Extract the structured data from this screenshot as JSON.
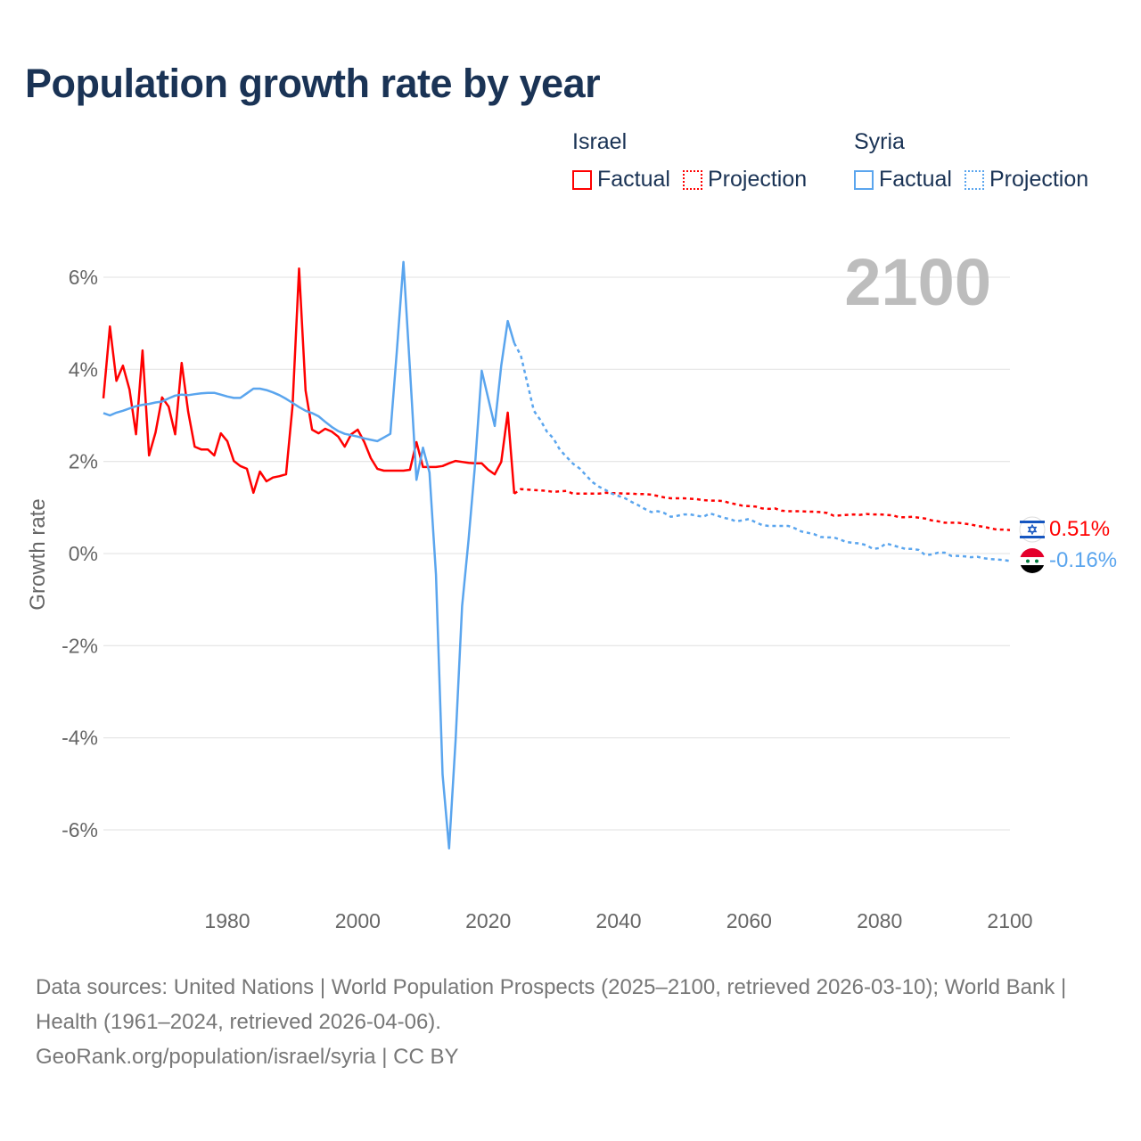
{
  "title": "Population growth rate by year",
  "legend": {
    "groups": [
      {
        "name": "Israel",
        "factual": "Factual",
        "projection": "Projection",
        "color": "#ff0000"
      },
      {
        "name": "Syria",
        "factual": "Factual",
        "projection": "Projection",
        "color": "#5aa5ee"
      }
    ]
  },
  "year_marker": "2100",
  "footer": {
    "sources": "Data sources: United Nations | World Population Prospects (2025–2100, retrieved 2026-03-10); World Bank | Health (1961–2024, retrieved 2026-04-06).",
    "credit": "GeoRank.org/population/israel/syria | CC BY"
  },
  "chart_data": {
    "type": "line",
    "title": "Population growth rate by year",
    "xlabel": "",
    "ylabel": "Growth rate",
    "xlim": [
      1961,
      2100
    ],
    "ylim": [
      -7.5,
      6.5
    ],
    "x_ticks": [
      1980,
      2000,
      2020,
      2040,
      2060,
      2080,
      2100
    ],
    "y_ticks": [
      6,
      4,
      2,
      0,
      -2,
      -4,
      -6
    ],
    "y_tick_labels": [
      "6%",
      "4%",
      "2%",
      "0%",
      "-2%",
      "-4%",
      "-6%"
    ],
    "grid": true,
    "series": [
      {
        "name": "Israel",
        "color": "#ff0000",
        "end_label": "0.51%",
        "factual_start": 1961,
        "factual": [
          3.37,
          4.93,
          3.75,
          4.08,
          3.56,
          2.59,
          4.41,
          2.13,
          2.63,
          3.39,
          3.19,
          2.59,
          4.14,
          3.08,
          2.32,
          2.26,
          2.26,
          2.13,
          2.61,
          2.44,
          2.01,
          1.9,
          1.84,
          1.32,
          1.78,
          1.57,
          1.65,
          1.68,
          1.72,
          3.21,
          6.19,
          3.54,
          2.69,
          2.61,
          2.71,
          2.65,
          2.54,
          2.32,
          2.59,
          2.69,
          2.42,
          2.07,
          1.84,
          1.8,
          1.8,
          1.8,
          1.8,
          1.82,
          2.42,
          1.88,
          1.88,
          1.88,
          1.9,
          1.96,
          2.01,
          1.99,
          1.97,
          1.96,
          1.96,
          1.82,
          1.72,
          1.99,
          3.06,
          1.3
        ],
        "projection_start": 2025,
        "projection": [
          1.4,
          1.39,
          1.38,
          1.37,
          1.36,
          1.34,
          1.35,
          1.36,
          1.3,
          1.3,
          1.3,
          1.3,
          1.3,
          1.32,
          1.31,
          1.31,
          1.3,
          1.3,
          1.29,
          1.29,
          1.28,
          1.25,
          1.22,
          1.2,
          1.2,
          1.2,
          1.19,
          1.18,
          1.16,
          1.15,
          1.15,
          1.14,
          1.1,
          1.07,
          1.04,
          1.03,
          1.02,
          0.98,
          0.97,
          0.98,
          0.93,
          0.92,
          0.92,
          0.92,
          0.91,
          0.91,
          0.9,
          0.88,
          0.82,
          0.83,
          0.84,
          0.85,
          0.84,
          0.86,
          0.85,
          0.85,
          0.84,
          0.83,
          0.79,
          0.79,
          0.8,
          0.78,
          0.76,
          0.72,
          0.7,
          0.67,
          0.67,
          0.67,
          0.65,
          0.63,
          0.6,
          0.58,
          0.55,
          0.52,
          0.52,
          0.51
        ]
      },
      {
        "name": "Syria",
        "color": "#5aa5ee",
        "end_label": "-0.16%",
        "factual_start": 1961,
        "factual": [
          3.05,
          3.0,
          3.06,
          3.1,
          3.15,
          3.2,
          3.23,
          3.25,
          3.28,
          3.3,
          3.37,
          3.43,
          3.45,
          3.44,
          3.46,
          3.48,
          3.49,
          3.49,
          3.45,
          3.41,
          3.38,
          3.38,
          3.48,
          3.58,
          3.58,
          3.55,
          3.5,
          3.44,
          3.36,
          3.27,
          3.18,
          3.1,
          3.05,
          2.98,
          2.86,
          2.75,
          2.66,
          2.6,
          2.57,
          2.54,
          2.5,
          2.47,
          2.44,
          2.52,
          2.6,
          4.4,
          6.33,
          4.0,
          1.6,
          2.3,
          1.76,
          -0.46,
          -4.8,
          -6.4,
          -4.05,
          -1.14,
          0.31,
          1.95,
          3.97,
          3.37,
          2.77,
          4.08,
          5.05,
          4.57
        ],
        "projection_start": 2025,
        "projection": [
          4.3,
          3.7,
          3.1,
          2.9,
          2.65,
          2.5,
          2.25,
          2.1,
          1.95,
          1.85,
          1.7,
          1.55,
          1.45,
          1.38,
          1.3,
          1.25,
          1.2,
          1.12,
          1.05,
          0.97,
          0.9,
          0.92,
          0.88,
          0.8,
          0.82,
          0.85,
          0.85,
          0.82,
          0.8,
          0.87,
          0.83,
          0.78,
          0.75,
          0.7,
          0.72,
          0.75,
          0.68,
          0.62,
          0.6,
          0.6,
          0.6,
          0.6,
          0.55,
          0.48,
          0.45,
          0.42,
          0.36,
          0.35,
          0.35,
          0.3,
          0.25,
          0.23,
          0.22,
          0.18,
          0.1,
          0.12,
          0.22,
          0.18,
          0.14,
          0.1,
          0.1,
          0.08,
          -0.03,
          -0.02,
          0.02,
          0.02,
          -0.05,
          -0.05,
          -0.06,
          -0.08,
          -0.07,
          -0.1,
          -0.12,
          -0.13,
          -0.14,
          -0.16
        ]
      }
    ]
  }
}
